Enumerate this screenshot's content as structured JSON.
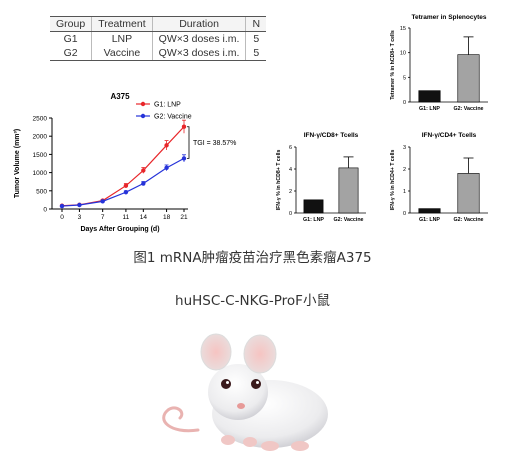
{
  "study_table": {
    "headers": [
      "Group",
      "Treatment",
      "Duration",
      "N"
    ],
    "rows": [
      [
        "G1",
        "LNP",
        "QW×3 doses i.m.",
        "5"
      ],
      [
        "G2",
        "Vaccine",
        "QW×3 doses i.m.",
        "5"
      ]
    ]
  },
  "captions": {
    "figure": "图1 mRNA肿瘤疫苗治疗黑色素瘤A375",
    "model": "huHSC-C-NKG-ProF小鼠"
  },
  "chart_data": [
    {
      "type": "line",
      "title": "A375",
      "xlabel": "Days After Grouping (d)",
      "ylabel": "Tumor Volume (mm³)",
      "x": [
        0,
        3,
        7,
        11,
        14,
        18,
        21
      ],
      "ylim": [
        0,
        2500
      ],
      "yticks": [
        0,
        500,
        1000,
        1500,
        2000,
        2500
      ],
      "series": [
        {
          "name": "G1: LNP",
          "color": "#e8262a",
          "values": [
            90,
            115,
            230,
            640,
            1060,
            1750,
            2260
          ],
          "errors": [
            15,
            20,
            30,
            60,
            80,
            130,
            180
          ]
        },
        {
          "name": "G2: Vaccine",
          "color": "#2633d9",
          "values": [
            80,
            110,
            210,
            460,
            700,
            1130,
            1390
          ],
          "errors": [
            12,
            15,
            25,
            40,
            55,
            80,
            100
          ]
        }
      ],
      "legend_position": "top-right",
      "annotation": "TGI = 38.57%"
    },
    {
      "type": "bar",
      "title": "Tetramer in Splenocytes",
      "ylabel": "Tetramer % in hCD8+ T cells",
      "categories": [
        "G1: LNP",
        "G2: Vaccine"
      ],
      "values": [
        2.3,
        9.6
      ],
      "errors": [
        0,
        3.6
      ],
      "colors": [
        "#111111",
        "#a3a3a3"
      ],
      "ylim": [
        0,
        15
      ],
      "yticks": [
        0,
        5,
        10,
        15
      ]
    },
    {
      "type": "bar",
      "title": "IFN-γ/CD8+ Tcells",
      "ylabel": "IFN-γ % in hCD8+ T cells",
      "categories": [
        "G1: LNP",
        "G2: Vaccine"
      ],
      "values": [
        1.2,
        4.1
      ],
      "errors": [
        0,
        1.0
      ],
      "colors": [
        "#111111",
        "#a3a3a3"
      ],
      "ylim": [
        0,
        6
      ],
      "yticks": [
        0,
        2,
        4,
        6
      ]
    },
    {
      "type": "bar",
      "title": "IFN-γ/CD4+ Tcells",
      "ylabel": "IFN-γ % in hCD4+ T cells",
      "categories": [
        "G1: LNP",
        "G2: Vaccine"
      ],
      "values": [
        0.2,
        1.8
      ],
      "errors": [
        0,
        0.7
      ],
      "colors": [
        "#111111",
        "#a3a3a3"
      ],
      "ylim": [
        0,
        3
      ],
      "yticks": [
        0,
        1,
        2,
        3
      ]
    }
  ]
}
